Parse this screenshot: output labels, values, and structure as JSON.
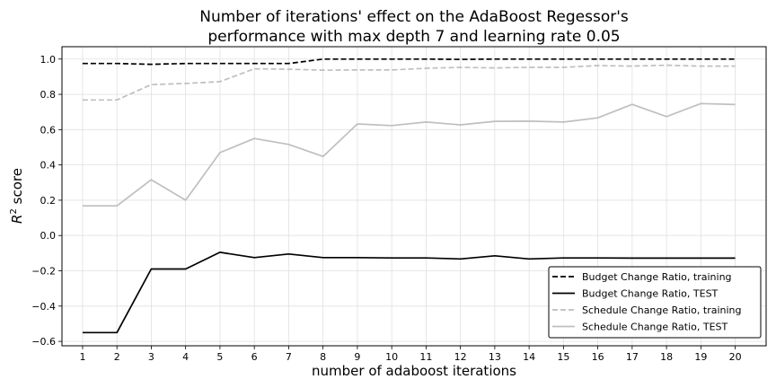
{
  "chart_data": {
    "type": "line",
    "title_lines": [
      "Number of iterations' effect on the AdaBoost Regessor's",
      "performance with max depth 7 and learning rate 0.05"
    ],
    "xlabel": "number of adaboost iterations",
    "ylabel_base": "R",
    "ylabel_sup": "2",
    "ylabel_rest": " score",
    "x": [
      1,
      2,
      3,
      4,
      5,
      6,
      7,
      8,
      9,
      10,
      11,
      12,
      13,
      14,
      15,
      16,
      17,
      18,
      19,
      20
    ],
    "xlim": [
      0.4,
      20.9
    ],
    "ylim": [
      -0.625,
      1.07
    ],
    "yticks": [
      -0.6,
      -0.4,
      -0.2,
      0.0,
      0.2,
      0.4,
      0.6,
      0.8,
      1.0
    ],
    "ytick_labels": [
      "−0.6",
      "−0.4",
      "−0.2",
      "0.0",
      "0.2",
      "0.4",
      "0.6",
      "0.8",
      "1.0"
    ],
    "grid": true,
    "legend_position": "lower-right",
    "series": [
      {
        "name": "Budget Change Ratio, training",
        "color": "#000000",
        "style": "dashed",
        "values": [
          0.975,
          0.975,
          0.97,
          0.975,
          0.975,
          0.975,
          0.975,
          1.0,
          1.0,
          1.0,
          1.0,
          0.998,
          1.0,
          1.0,
          1.0,
          1.0,
          1.0,
          1.0,
          1.0,
          1.0
        ]
      },
      {
        "name": "Budget Change Ratio, TEST",
        "color": "#000000",
        "style": "solid",
        "values": [
          -0.55,
          -0.55,
          -0.19,
          -0.19,
          -0.095,
          -0.125,
          -0.105,
          -0.125,
          -0.125,
          -0.127,
          -0.127,
          -0.133,
          -0.115,
          -0.133,
          -0.127,
          -0.127,
          -0.128,
          -0.128,
          -0.128,
          -0.128
        ]
      },
      {
        "name": "Schedule Change Ratio, training",
        "color": "#bfbfbf",
        "style": "dashed",
        "values": [
          0.768,
          0.768,
          0.855,
          0.862,
          0.872,
          0.945,
          0.942,
          0.937,
          0.938,
          0.938,
          0.948,
          0.953,
          0.95,
          0.953,
          0.953,
          0.963,
          0.96,
          0.965,
          0.96,
          0.96
        ]
      },
      {
        "name": "Schedule Change Ratio, TEST",
        "color": "#bfbfbf",
        "style": "solid",
        "values": [
          0.168,
          0.168,
          0.316,
          0.2,
          0.47,
          0.55,
          0.516,
          0.448,
          0.632,
          0.623,
          0.643,
          0.627,
          0.647,
          0.648,
          0.643,
          0.667,
          0.743,
          0.674,
          0.748,
          0.742
        ]
      }
    ]
  }
}
